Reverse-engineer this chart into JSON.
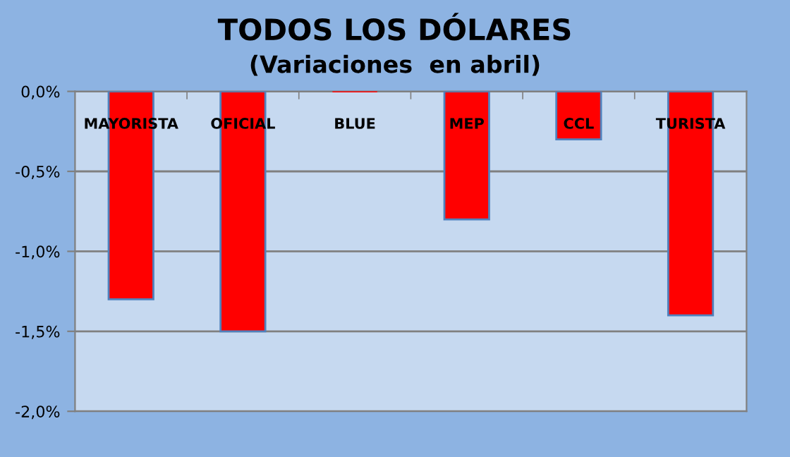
{
  "chart_data": {
    "type": "bar",
    "title": "TODOS LOS DÓLARES",
    "subtitle": "(Variaciones  en abril)",
    "categories": [
      "MAYORISTA",
      "OFICIAL",
      "BLUE",
      "MEP",
      "CCL",
      "TURISTA"
    ],
    "series": [
      {
        "color": "#ff0000",
        "values": [
          -1.3,
          -1.5,
          0,
          -0.8,
          -0.3,
          -1.4
        ]
      }
    ],
    "ylim": [
      -2.0,
      0.0
    ],
    "yticks": [
      {
        "value": -2.0,
        "label": "-2,0%"
      },
      {
        "value": -1.5,
        "label": "-1,5%"
      },
      {
        "value": -1.0,
        "label": "-1,0%"
      },
      {
        "value": -0.5,
        "label": "-0,5%"
      },
      {
        "value": 0.0,
        "label": "0,0%"
      }
    ],
    "grid": "y",
    "legend": false
  }
}
